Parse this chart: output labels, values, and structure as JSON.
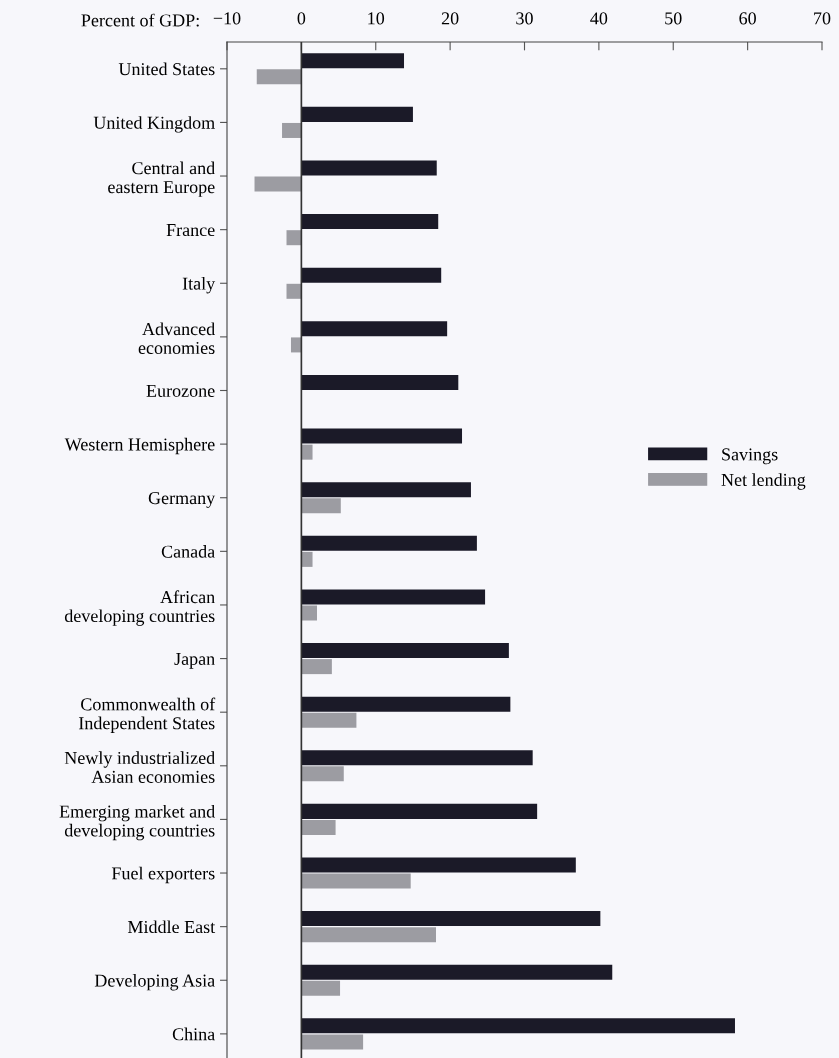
{
  "chart_data": {
    "type": "bar",
    "orientation": "horizontal",
    "xlabel": "Percent of GDP:",
    "categories": [
      "United States",
      "United Kingdom",
      "Central and\neastern Europe",
      "France",
      "Italy",
      "Advanced\neconomies",
      "Eurozone",
      "Western Hemisphere",
      "Germany",
      "Canada",
      "African\ndeveloping countries",
      "Japan",
      "Commonwealth of\nIndependent States",
      "Newly industrialized\nAsian economies",
      "Emerging market and\ndeveloping countries",
      "Fuel exporters",
      "Middle East",
      "Developing Asia",
      "China"
    ],
    "series": [
      {
        "name": "Savings",
        "color": "#1b1a28",
        "values": [
          13.8,
          15.0,
          18.2,
          18.4,
          18.8,
          19.6,
          21.1,
          21.6,
          22.8,
          23.6,
          24.7,
          27.9,
          28.1,
          31.1,
          31.7,
          36.9,
          40.2,
          41.8,
          58.3
        ]
      },
      {
        "name": "Net lending",
        "color": "#9c9ca2",
        "values": [
          -6.0,
          -2.6,
          -6.3,
          -2.0,
          -2.0,
          -1.4,
          null,
          1.5,
          5.3,
          1.5,
          2.1,
          4.1,
          7.4,
          5.7,
          4.6,
          14.7,
          18.1,
          5.2,
          8.3
        ]
      }
    ],
    "xlim": [
      -10,
      70
    ],
    "xticks": [
      {
        "value": -10,
        "label": "−10"
      },
      0,
      10,
      20,
      30,
      40,
      50,
      60,
      70
    ],
    "ref_lines": [
      {
        "axis": "x",
        "value": 0,
        "color": "#333333"
      }
    ],
    "legend": "right",
    "grid": false
  }
}
